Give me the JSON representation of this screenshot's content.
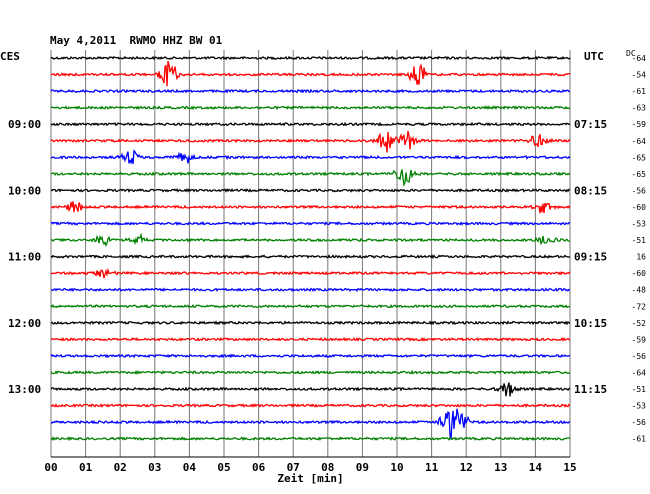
{
  "header": {
    "title": "May 4,2011  RWMO HHZ BW 01",
    "left_tz": "CES",
    "right_tz": "UTC",
    "dc_label": "DC"
  },
  "chart_data": {
    "type": "line",
    "title": "May 4,2011  RWMO HHZ BW 01",
    "xlabel": "Zeit [min]",
    "ylabel": "",
    "x_ticks": [
      "00",
      "01",
      "02",
      "03",
      "04",
      "05",
      "06",
      "07",
      "08",
      "09",
      "10",
      "11",
      "12",
      "13",
      "14",
      "15"
    ],
    "xlim": [
      0,
      15
    ],
    "grid": true,
    "trace_colors": [
      "#000000",
      "#ff0000",
      "#0000ff",
      "#008000"
    ],
    "local_time_labels": [
      {
        "row": 4,
        "label": "09:00"
      },
      {
        "row": 8,
        "label": "10:00"
      },
      {
        "row": 12,
        "label": "11:00"
      },
      {
        "row": 16,
        "label": "12:00"
      },
      {
        "row": 20,
        "label": "13:00"
      }
    ],
    "utc_time_labels": [
      {
        "row": 4,
        "label": "07:15"
      },
      {
        "row": 8,
        "label": "08:15"
      },
      {
        "row": 12,
        "label": "09:15"
      },
      {
        "row": 16,
        "label": "10:15"
      },
      {
        "row": 20,
        "label": "11:15"
      }
    ],
    "dc_offsets": [
      "-64",
      "-54",
      "-61",
      "-63",
      "-59",
      "-64",
      "-65",
      "-65",
      "-56",
      "-60",
      "-53",
      "-51",
      "16",
      "-60",
      "-48",
      "-72",
      "-52",
      "-59",
      "-56",
      "-64",
      "-51",
      "-53",
      "-56",
      "-61"
    ],
    "events": [
      {
        "row": 1,
        "minute": 3.4,
        "amp": 14
      },
      {
        "row": 1,
        "minute": 10.6,
        "amp": 12
      },
      {
        "row": 5,
        "minute": 9.7,
        "amp": 12
      },
      {
        "row": 5,
        "minute": 10.3,
        "amp": 10
      },
      {
        "row": 5,
        "minute": 14.1,
        "amp": 8
      },
      {
        "row": 6,
        "minute": 2.3,
        "amp": 7
      },
      {
        "row": 6,
        "minute": 3.9,
        "amp": 6
      },
      {
        "row": 7,
        "minute": 10.2,
        "amp": 12
      },
      {
        "row": 9,
        "minute": 0.7,
        "amp": 8
      },
      {
        "row": 9,
        "minute": 14.2,
        "amp": 7
      },
      {
        "row": 11,
        "minute": 1.5,
        "amp": 6
      },
      {
        "row": 11,
        "minute": 2.5,
        "amp": 5
      },
      {
        "row": 11,
        "minute": 14.3,
        "amp": 5
      },
      {
        "row": 13,
        "minute": 1.5,
        "amp": 5
      },
      {
        "row": 20,
        "minute": 13.2,
        "amp": 8
      },
      {
        "row": 22,
        "minute": 11.5,
        "amp": 16
      },
      {
        "row": 22,
        "minute": 11.8,
        "amp": 12
      }
    ]
  }
}
